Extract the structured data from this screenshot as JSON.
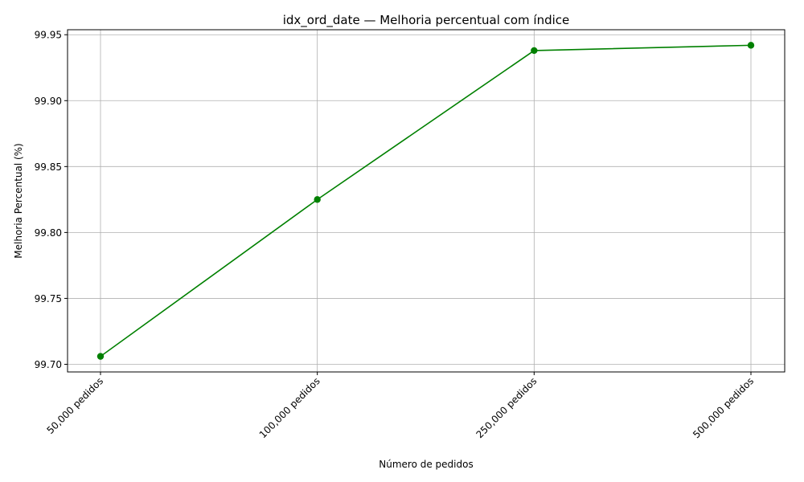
{
  "chart_data": {
    "type": "line",
    "title": "idx_ord_date — Melhoria percentual com índice",
    "xlabel": "Número de pedidos",
    "ylabel": "Melhoria Percentual (%)",
    "categories": [
      "50,000 pedidos",
      "100,000 pedidos",
      "250,000 pedidos",
      "500,000 pedidos"
    ],
    "series": [
      {
        "values": [
          99.706,
          99.825,
          99.938,
          99.942
        ],
        "color": "#008000",
        "marker": "circle"
      }
    ],
    "yticks": [
      "99.70",
      "99.75",
      "99.80",
      "99.85",
      "99.90",
      "99.95"
    ],
    "ylim": [
      99.6942,
      99.9538
    ],
    "grid": true,
    "xtick_rotation": 45
  }
}
